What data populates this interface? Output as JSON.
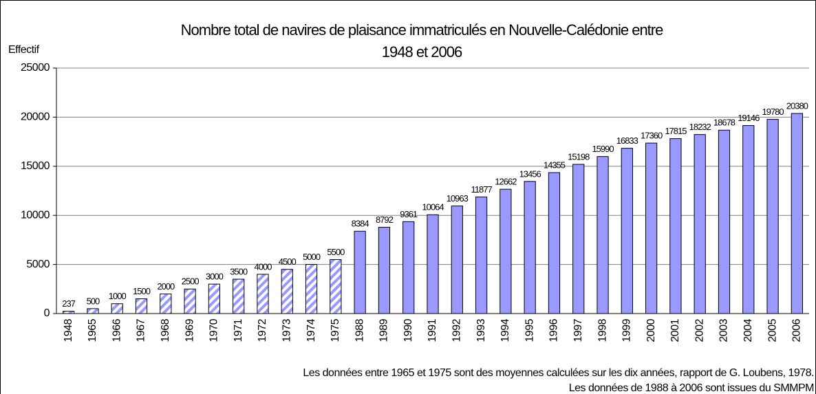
{
  "chart_data": {
    "type": "bar",
    "title": [
      "Nombre total de navires de plaisance immatriculés en Nouvelle-Calédonie entre",
      "1948 et 2006"
    ],
    "y_label": "Effectif",
    "notes": [
      "Les données entre 1965 et 1975 sont des moyennes calculées sur les dix années, rapport de G. Loubens, 1978.",
      "Les données de 1988 à 2006 sont issues du SMMPM"
    ],
    "categories": [
      "1948",
      "1965",
      "1966",
      "1967",
      "1968",
      "1969",
      "1970",
      "1971",
      "1972",
      "1973",
      "1974",
      "1975",
      "1988",
      "1989",
      "1990",
      "1991",
      "1992",
      "1993",
      "1994",
      "1995",
      "1996",
      "1997",
      "1998",
      "1999",
      "2000",
      "2001",
      "2002",
      "2003",
      "2004",
      "2005",
      "2006"
    ],
    "values": [
      237,
      500,
      1000,
      1500,
      2000,
      2500,
      3000,
      3500,
      4000,
      4500,
      5000,
      5500,
      8384,
      8792,
      9361,
      10064,
      10963,
      11877,
      12662,
      13456,
      14355,
      15198,
      15990,
      16833,
      17360,
      17815,
      18232,
      18678,
      19146,
      19780,
      20380
    ],
    "bar_styles": [
      "hatched",
      "hatched",
      "hatched",
      "hatched",
      "hatched",
      "hatched",
      "hatched",
      "hatched",
      "hatched",
      "hatched",
      "hatched",
      "hatched",
      "solid",
      "solid",
      "solid",
      "solid",
      "solid",
      "solid",
      "solid",
      "solid",
      "solid",
      "solid",
      "solid",
      "solid",
      "solid",
      "solid",
      "solid",
      "solid",
      "solid",
      "solid",
      "solid"
    ],
    "color": "#9999ff",
    "ylim": [
      0,
      25000
    ],
    "yticks": [
      0,
      5000,
      10000,
      15000,
      20000,
      25000
    ],
    "grid": true
  }
}
